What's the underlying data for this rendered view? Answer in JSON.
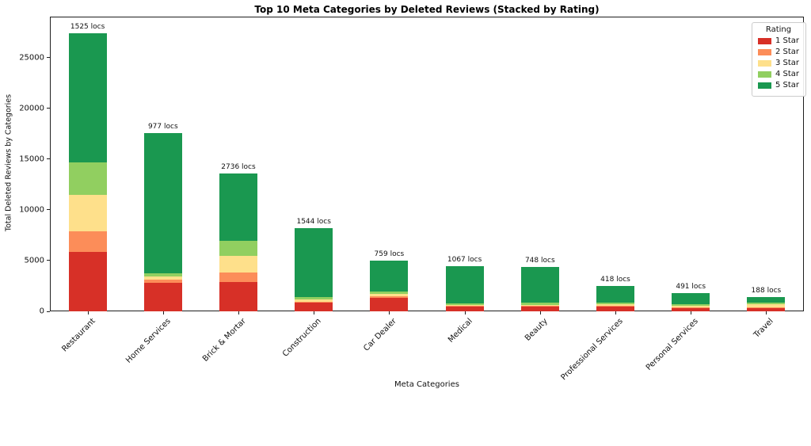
{
  "title": "Top 10 Meta Categories by Deleted Reviews (Stacked by Rating)",
  "chart_data": {
    "type": "bar",
    "stacked": true,
    "title": "Top 10 Meta Categories by Deleted Reviews (Stacked by Rating)",
    "xlabel": "Meta Categories",
    "ylabel": "Total Deleted Reviews by Categories",
    "ylim": [
      0,
      29040
    ],
    "yticks": [
      0,
      5000,
      10000,
      15000,
      20000,
      25000
    ],
    "grid": false,
    "legend": {
      "title": "Rating",
      "position": "upper right"
    },
    "categories": [
      "Restaurant",
      "Home Services",
      "Brick & Mortar",
      "Construction",
      "Car Dealer",
      "Medical",
      "Beauty",
      "Professional Services",
      "Personal Services",
      "Travel"
    ],
    "bar_labels": [
      "1525 locs",
      "977 locs",
      "2736 locs",
      "1544 locs",
      "759 locs",
      "1067 locs",
      "748 locs",
      "418 locs",
      "491 locs",
      "188 locs"
    ],
    "series": [
      {
        "name": "1 Star",
        "color": "#d73027",
        "values": [
          5840,
          2790,
          2870,
          840,
          1300,
          430,
          450,
          520,
          340,
          290
        ]
      },
      {
        "name": "2 Star",
        "color": "#fc8d59",
        "values": [
          2070,
          310,
          990,
          130,
          180,
          80,
          80,
          60,
          80,
          100
        ]
      },
      {
        "name": "3 Star",
        "color": "#fee08b",
        "values": [
          3570,
          340,
          1610,
          180,
          230,
          110,
          130,
          130,
          125,
          310
        ]
      },
      {
        "name": "4 Star",
        "color": "#91cf60",
        "values": [
          3180,
          340,
          1515,
          240,
          240,
          130,
          160,
          150,
          135,
          160
        ]
      },
      {
        "name": "5 Star",
        "color": "#1a9850",
        "values": [
          12740,
          13820,
          6565,
          6770,
          3030,
          3700,
          3560,
          1640,
          1150,
          580
        ]
      }
    ],
    "totals": [
      27400,
      17600,
      13550,
      8160,
      4980,
      4450,
      4380,
      2500,
      1830,
      1440
    ]
  }
}
